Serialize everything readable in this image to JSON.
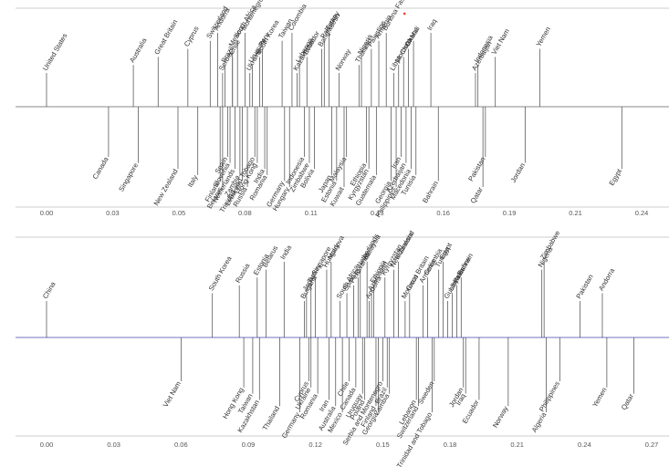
{
  "chart_data": [
    {
      "type": "timeline",
      "xlim": [
        0,
        0.24
      ],
      "ticks": [
        "0.00",
        "0.03",
        "0.05",
        "0.08",
        "0.11",
        "0.13",
        "0.16",
        "0.19",
        "0.21",
        "0.24"
      ],
      "colors": {
        "baseline": "#888888",
        "frame": "#bbbbbb",
        "stem": "#444444",
        "marker": "#e8483c"
      },
      "points": [
        {
          "label": "United States",
          "x": 0.0,
          "side": "up"
        },
        {
          "label": "Canada",
          "x": 0.025,
          "side": "down"
        },
        {
          "label": "Australia",
          "x": 0.035,
          "side": "up"
        },
        {
          "label": "Singapore",
          "x": 0.037,
          "side": "down"
        },
        {
          "label": "Great Britain",
          "x": 0.045,
          "side": "up"
        },
        {
          "label": "New Zealand",
          "x": 0.053,
          "side": "down"
        },
        {
          "label": "Cyprus",
          "x": 0.057,
          "side": "up"
        },
        {
          "label": "Italy",
          "x": 0.061,
          "side": "down"
        },
        {
          "label": "Switzerland",
          "x": 0.066,
          "side": "up"
        },
        {
          "label": "Andorra",
          "x": 0.069,
          "side": "up"
        },
        {
          "label": "Finland",
          "x": 0.07,
          "side": "down"
        },
        {
          "label": "Belarus",
          "x": 0.071,
          "side": "down"
        },
        {
          "label": "Serbia",
          "x": 0.071,
          "side": "up"
        },
        {
          "label": "Brazil",
          "x": 0.072,
          "side": "up"
        },
        {
          "label": "Spain",
          "x": 0.073,
          "side": "down"
        },
        {
          "label": "Slovenia",
          "x": 0.074,
          "side": "down"
        },
        {
          "label": "Chile",
          "x": 0.075,
          "side": "up"
        },
        {
          "label": "Mexico",
          "x": 0.075,
          "side": "up"
        },
        {
          "label": "Netherlands",
          "x": 0.076,
          "side": "down"
        },
        {
          "label": "South Africa",
          "x": 0.077,
          "side": "up"
        },
        {
          "label": "Zambia",
          "x": 0.078,
          "side": "down"
        },
        {
          "label": "Lebanon",
          "x": 0.079,
          "side": "down"
        },
        {
          "label": "Montenegro",
          "x": 0.08,
          "side": "up"
        },
        {
          "label": "Russia",
          "x": 0.081,
          "side": "down"
        },
        {
          "label": "Ukraine",
          "x": 0.082,
          "side": "up"
        },
        {
          "label": "Uruguay",
          "x": 0.083,
          "side": "up"
        },
        {
          "label": "Trinidad and Tobago",
          "x": 0.084,
          "side": "down"
        },
        {
          "label": "Hong Kong",
          "x": 0.085,
          "side": "down"
        },
        {
          "label": "South Korea",
          "x": 0.086,
          "side": "up"
        },
        {
          "label": "Peru",
          "x": 0.087,
          "side": "up"
        },
        {
          "label": "India",
          "x": 0.088,
          "side": "down"
        },
        {
          "label": "Romania",
          "x": 0.089,
          "side": "down"
        },
        {
          "label": "Taiwan",
          "x": 0.095,
          "side": "up"
        },
        {
          "label": "Germany",
          "x": 0.096,
          "side": "down"
        },
        {
          "label": "Hungary",
          "x": 0.098,
          "side": "down"
        },
        {
          "label": "Colombia",
          "x": 0.099,
          "side": "up"
        },
        {
          "label": "Kazakhstan",
          "x": 0.101,
          "side": "up"
        },
        {
          "label": "Lebanon",
          "x": 0.102,
          "side": "up"
        },
        {
          "label": "Indonesia",
          "x": 0.104,
          "side": "down"
        },
        {
          "label": "Ecuador",
          "x": 0.105,
          "side": "up"
        },
        {
          "label": "Zimbabwe",
          "x": 0.106,
          "side": "down"
        },
        {
          "label": "Bolivia",
          "x": 0.108,
          "side": "down"
        },
        {
          "label": "Bangladesh",
          "x": 0.111,
          "side": "up"
        },
        {
          "label": "Pakistan",
          "x": 0.112,
          "side": "up"
        },
        {
          "label": "Turkey",
          "x": 0.114,
          "side": "up"
        },
        {
          "label": "Japan",
          "x": 0.115,
          "side": "down"
        },
        {
          "label": "Estonia",
          "x": 0.117,
          "side": "down"
        },
        {
          "label": "Norway",
          "x": 0.118,
          "side": "up"
        },
        {
          "label": "Kuwait",
          "x": 0.12,
          "side": "down"
        },
        {
          "label": "Malaysia",
          "x": 0.121,
          "side": "down"
        },
        {
          "label": "Thailand",
          "x": 0.126,
          "side": "up"
        },
        {
          "label": "Nigeria",
          "x": 0.127,
          "side": "up"
        },
        {
          "label": "Ethiopia",
          "x": 0.129,
          "side": "down"
        },
        {
          "label": "Kyrgyzstan",
          "x": 0.13,
          "side": "down"
        },
        {
          "label": "Palestine",
          "x": 0.131,
          "side": "up"
        },
        {
          "label": "Guatemala",
          "x": 0.133,
          "side": "down"
        },
        {
          "label": "Armenia",
          "x": 0.134,
          "side": "up"
        },
        {
          "label": "Burkina Faso",
          "x": 0.137,
          "side": "up"
        },
        {
          "label": "Georgia",
          "x": 0.139,
          "side": "down"
        },
        {
          "label": "Libya",
          "x": 0.14,
          "side": "up"
        },
        {
          "label": "Philippines",
          "x": 0.141,
          "side": "down"
        },
        {
          "label": "Morocco",
          "x": 0.142,
          "side": "up"
        },
        {
          "label": "Iran",
          "x": 0.143,
          "side": "down"
        },
        {
          "label": "China",
          "x": 0.144,
          "side": "up",
          "marker": true
        },
        {
          "label": "Azerbaijan",
          "x": 0.145,
          "side": "down"
        },
        {
          "label": "Ghana",
          "x": 0.146,
          "side": "up"
        },
        {
          "label": "Macedonia",
          "x": 0.147,
          "side": "down"
        },
        {
          "label": "Mali",
          "x": 0.148,
          "side": "up"
        },
        {
          "label": "Tunisia",
          "x": 0.149,
          "side": "down"
        },
        {
          "label": "Iraq",
          "x": 0.155,
          "side": "up"
        },
        {
          "label": "Bahrain",
          "x": 0.158,
          "side": "down"
        },
        {
          "label": "Azerbaijan",
          "x": 0.173,
          "side": "up"
        },
        {
          "label": "Indonesia",
          "x": 0.174,
          "side": "up"
        },
        {
          "label": "Qatar",
          "x": 0.176,
          "side": "down"
        },
        {
          "label": "Pakistan",
          "x": 0.177,
          "side": "down"
        },
        {
          "label": "Viet Nam",
          "x": 0.181,
          "side": "up"
        },
        {
          "label": "Jordan",
          "x": 0.193,
          "side": "down"
        },
        {
          "label": "Yemen",
          "x": 0.199,
          "side": "up"
        },
        {
          "label": "Egypt",
          "x": 0.232,
          "side": "down"
        }
      ]
    },
    {
      "type": "timeline",
      "xlim": [
        0,
        0.27
      ],
      "ticks": [
        "0.00",
        "0.03",
        "0.06",
        "0.09",
        "0.12",
        "0.15",
        "0.18",
        "0.21",
        "0.24",
        "0.27"
      ],
      "colors": {
        "baseline": "#7070c0",
        "frame": "#bbbbbb",
        "stem": "#444444",
        "marker": "#e8483c"
      },
      "points": [
        {
          "label": "China",
          "x": 0.0,
          "side": "up"
        },
        {
          "label": "Viet Nam",
          "x": 0.06,
          "side": "down"
        },
        {
          "label": "South Korea",
          "x": 0.074,
          "side": "up"
        },
        {
          "label": "Russia",
          "x": 0.086,
          "side": "up"
        },
        {
          "label": "Hong Kong",
          "x": 0.088,
          "side": "down"
        },
        {
          "label": "Taiwan",
          "x": 0.092,
          "side": "down"
        },
        {
          "label": "Estonia",
          "x": 0.094,
          "side": "up"
        },
        {
          "label": "Kazakhstan",
          "x": 0.095,
          "side": "down"
        },
        {
          "label": "Belarus",
          "x": 0.098,
          "side": "up"
        },
        {
          "label": "Thailand",
          "x": 0.104,
          "side": "down"
        },
        {
          "label": "India",
          "x": 0.106,
          "side": "up"
        },
        {
          "label": "Germany",
          "x": 0.113,
          "side": "down"
        },
        {
          "label": "Bulgaria",
          "x": 0.115,
          "side": "up"
        },
        {
          "label": "Japan",
          "x": 0.116,
          "side": "up"
        },
        {
          "label": "Cyprus",
          "x": 0.117,
          "side": "down"
        },
        {
          "label": "Turkey",
          "x": 0.118,
          "side": "up"
        },
        {
          "label": "Ukraine",
          "x": 0.118,
          "side": "down"
        },
        {
          "label": "Singapore",
          "x": 0.12,
          "side": "up"
        },
        {
          "label": "Romania",
          "x": 0.121,
          "side": "down"
        },
        {
          "label": "Hungary",
          "x": 0.125,
          "side": "up"
        },
        {
          "label": "Iran",
          "x": 0.126,
          "side": "down"
        },
        {
          "label": "Moldova",
          "x": 0.127,
          "side": "up"
        },
        {
          "label": "Australia",
          "x": 0.129,
          "side": "down"
        },
        {
          "label": "South Africa",
          "x": 0.131,
          "side": "up"
        },
        {
          "label": "Mexico",
          "x": 0.132,
          "side": "down"
        },
        {
          "label": "Spain",
          "x": 0.134,
          "side": "up"
        },
        {
          "label": "Chile",
          "x": 0.135,
          "side": "down"
        },
        {
          "label": "Peru",
          "x": 0.137,
          "side": "up"
        },
        {
          "label": "Canada",
          "x": 0.138,
          "side": "down"
        },
        {
          "label": "Rwanda",
          "x": 0.139,
          "side": "up"
        },
        {
          "label": "Netherlands",
          "x": 0.14,
          "side": "up"
        },
        {
          "label": "Uruguay",
          "x": 0.141,
          "side": "down"
        },
        {
          "label": "Poland",
          "x": 0.142,
          "side": "down"
        },
        {
          "label": "Malaysia",
          "x": 0.143,
          "side": "up"
        },
        {
          "label": "Andorra",
          "x": 0.144,
          "side": "up"
        },
        {
          "label": "Azerbaijan",
          "x": 0.145,
          "side": "up"
        },
        {
          "label": "Ethiopia",
          "x": 0.146,
          "side": "up"
        },
        {
          "label": "Finland",
          "x": 0.147,
          "side": "down"
        },
        {
          "label": "Georgia",
          "x": 0.148,
          "side": "down"
        },
        {
          "label": "Serbia and Montenegro",
          "x": 0.15,
          "side": "down"
        },
        {
          "label": "Kyrgyzstan",
          "x": 0.151,
          "side": "up"
        },
        {
          "label": "Brazil",
          "x": 0.152,
          "side": "down"
        },
        {
          "label": "Zambia",
          "x": 0.153,
          "side": "down"
        },
        {
          "label": "New Zealand",
          "x": 0.155,
          "side": "up"
        },
        {
          "label": "Indonesia",
          "x": 0.157,
          "side": "up"
        },
        {
          "label": "Morocco",
          "x": 0.16,
          "side": "up"
        },
        {
          "label": "Great Britain",
          "x": 0.162,
          "side": "up"
        },
        {
          "label": "Lebanon",
          "x": 0.165,
          "side": "down"
        },
        {
          "label": "Switzerland",
          "x": 0.166,
          "side": "down"
        },
        {
          "label": "Armenia",
          "x": 0.168,
          "side": "up"
        },
        {
          "label": "Colombia",
          "x": 0.17,
          "side": "up"
        },
        {
          "label": "Trinidad and Tobago",
          "x": 0.172,
          "side": "down"
        },
        {
          "label": "Sweden",
          "x": 0.173,
          "side": "down"
        },
        {
          "label": "Tunisia",
          "x": 0.175,
          "side": "up"
        },
        {
          "label": "Egypt",
          "x": 0.177,
          "side": "up"
        },
        {
          "label": "Guatemala",
          "x": 0.179,
          "side": "up"
        },
        {
          "label": "Libya",
          "x": 0.181,
          "side": "up"
        },
        {
          "label": "Palestine",
          "x": 0.183,
          "side": "up"
        },
        {
          "label": "Bahrain",
          "x": 0.185,
          "side": "up"
        },
        {
          "label": "Jordan",
          "x": 0.186,
          "side": "down"
        },
        {
          "label": "Iraq",
          "x": 0.187,
          "side": "down"
        },
        {
          "label": "Ecuador",
          "x": 0.193,
          "side": "down"
        },
        {
          "label": "Norway",
          "x": 0.206,
          "side": "down"
        },
        {
          "label": "Nigeria",
          "x": 0.221,
          "side": "up"
        },
        {
          "label": "Zimbabwe",
          "x": 0.222,
          "side": "up"
        },
        {
          "label": "Algeria",
          "x": 0.223,
          "side": "down"
        },
        {
          "label": "Philippines",
          "x": 0.229,
          "side": "down"
        },
        {
          "label": "Pakistan",
          "x": 0.238,
          "side": "up"
        },
        {
          "label": "Andorra",
          "x": 0.248,
          "side": "up"
        },
        {
          "label": "Yemen",
          "x": 0.25,
          "side": "down"
        },
        {
          "label": "Qatar",
          "x": 0.262,
          "side": "down"
        }
      ]
    }
  ]
}
